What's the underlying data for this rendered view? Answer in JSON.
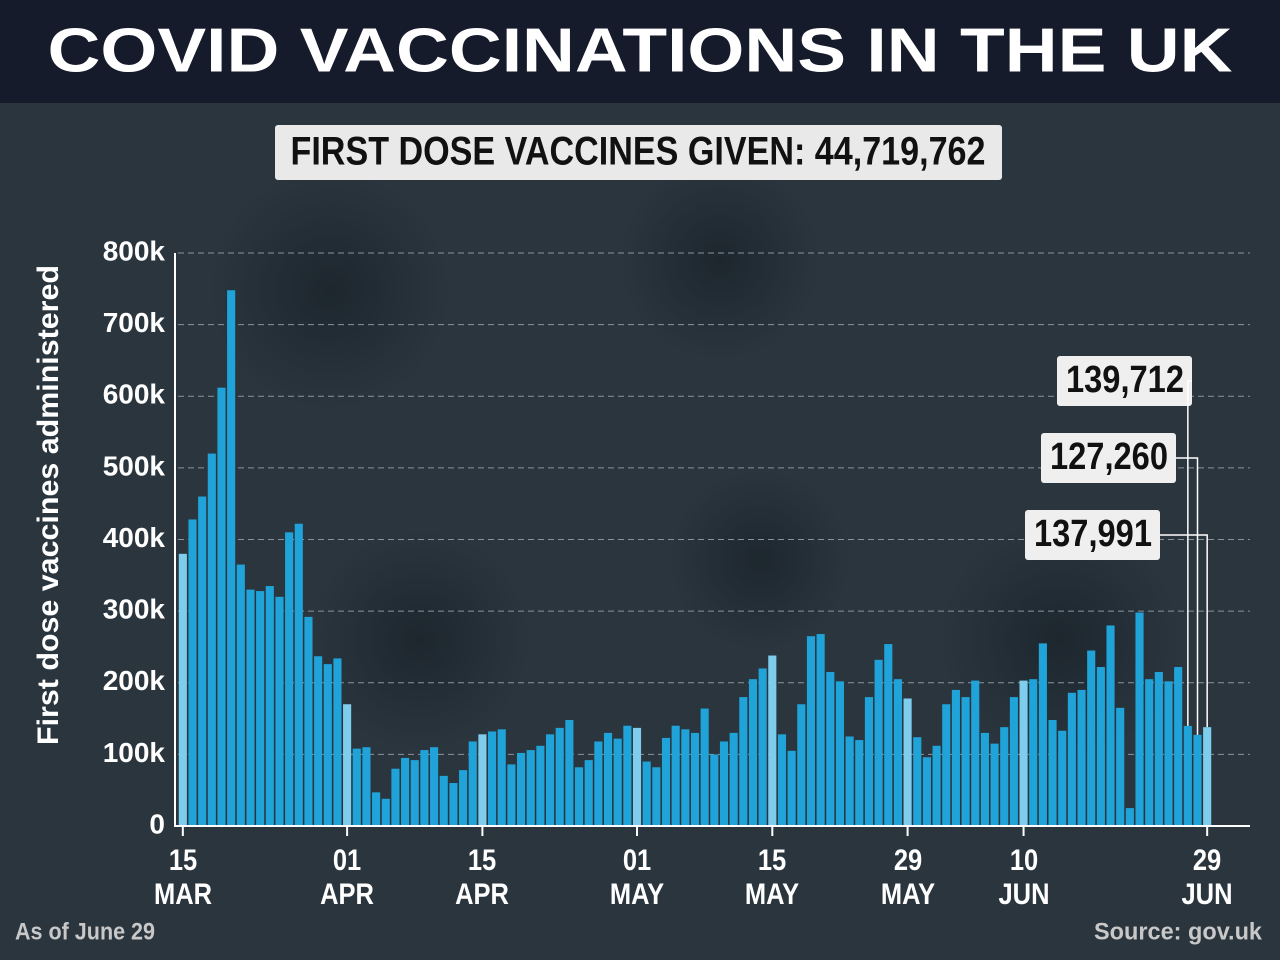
{
  "chart_data": {
    "type": "bar",
    "title": "COVID VACCINATIONS IN THE UK",
    "subtitle": "FIRST DOSE VACCINES GIVEN: 44,719,762",
    "y_label": "First dose vaccines administered",
    "note": "As of June 29",
    "source": "Source: gov.uk",
    "color": "#1fa3d8",
    "grid": true,
    "ylim": [
      0,
      800000
    ],
    "yticks": [
      0,
      {
        "value": 100000,
        "label": "100k"
      },
      {
        "value": 200000,
        "label": "200k"
      },
      {
        "value": 300000,
        "label": "300k"
      },
      {
        "value": 400000,
        "label": "400k"
      },
      {
        "value": 500000,
        "label": "500k"
      },
      {
        "value": 600000,
        "label": "600k"
      },
      {
        "value": 700000,
        "label": "700k"
      },
      {
        "value": 800000,
        "label": "800k"
      }
    ],
    "categories": [
      "15 MAR",
      null,
      null,
      null,
      null,
      null,
      null,
      null,
      null,
      null,
      null,
      null,
      null,
      null,
      null,
      null,
      null,
      "01 APR",
      null,
      null,
      null,
      null,
      null,
      null,
      null,
      null,
      null,
      null,
      null,
      null,
      null,
      "15 APR",
      null,
      null,
      null,
      null,
      null,
      null,
      null,
      null,
      null,
      null,
      null,
      null,
      null,
      null,
      null,
      "01 MAY",
      null,
      null,
      null,
      null,
      null,
      null,
      null,
      null,
      null,
      null,
      null,
      null,
      null,
      "15 MAY",
      null,
      null,
      null,
      null,
      null,
      null,
      null,
      null,
      null,
      null,
      null,
      null,
      null,
      "29 MAY",
      null,
      null,
      null,
      null,
      null,
      null,
      null,
      null,
      null,
      null,
      null,
      "10 JUN",
      null,
      null,
      null,
      null,
      null,
      null,
      null,
      null,
      null,
      null,
      null,
      null,
      null,
      null,
      null,
      null,
      null,
      null,
      "29 JUN"
    ],
    "values": [
      380000,
      428000,
      460000,
      520000,
      612000,
      748000,
      365000,
      330000,
      328000,
      335000,
      320000,
      410000,
      422000,
      292000,
      237000,
      226000,
      234000,
      170000,
      108000,
      110000,
      47000,
      38000,
      80000,
      95000,
      92000,
      106000,
      110000,
      70000,
      60000,
      78000,
      118000,
      128000,
      132000,
      135000,
      86000,
      102000,
      106000,
      112000,
      128000,
      137000,
      148000,
      82000,
      92000,
      118000,
      130000,
      122000,
      140000,
      137000,
      90000,
      82000,
      123000,
      140000,
      135000,
      130000,
      164000,
      100000,
      118000,
      130000,
      180000,
      205000,
      220000,
      238000,
      128000,
      105000,
      170000,
      265000,
      268000,
      215000,
      202000,
      125000,
      120000,
      180000,
      232000,
      254000,
      205000,
      178000,
      124000,
      96000,
      112000,
      170000,
      190000,
      180000,
      203000,
      130000,
      115000,
      138000,
      180000,
      203000,
      205000,
      255000,
      148000,
      133000,
      186000,
      190000,
      245000,
      222000,
      280000,
      165000,
      25000,
      298000,
      205000,
      215000,
      202000,
      222000,
      139712,
      127260,
      137991
    ],
    "value_labels": [
      null,
      null,
      null,
      null,
      null,
      null,
      null,
      null,
      null,
      null,
      null,
      null,
      null,
      null,
      null,
      null,
      null,
      null,
      null,
      null,
      null,
      null,
      null,
      null,
      null,
      null,
      null,
      null,
      null,
      null,
      null,
      null,
      null,
      null,
      null,
      null,
      null,
      null,
      null,
      null,
      null,
      null,
      null,
      null,
      null,
      null,
      null,
      null,
      null,
      null,
      null,
      null,
      null,
      null,
      null,
      null,
      null,
      null,
      null,
      null,
      null,
      null,
      null,
      null,
      null,
      null,
      null,
      null,
      null,
      null,
      null,
      null,
      null,
      null,
      null,
      null,
      null,
      null,
      null,
      null,
      null,
      null,
      null,
      null,
      null,
      null,
      null,
      null,
      null,
      null,
      null,
      null,
      null,
      null,
      null,
      null,
      null,
      null,
      null,
      null,
      null,
      null,
      null,
      null,
      "139,712",
      "127,260",
      "137,991"
    ]
  }
}
